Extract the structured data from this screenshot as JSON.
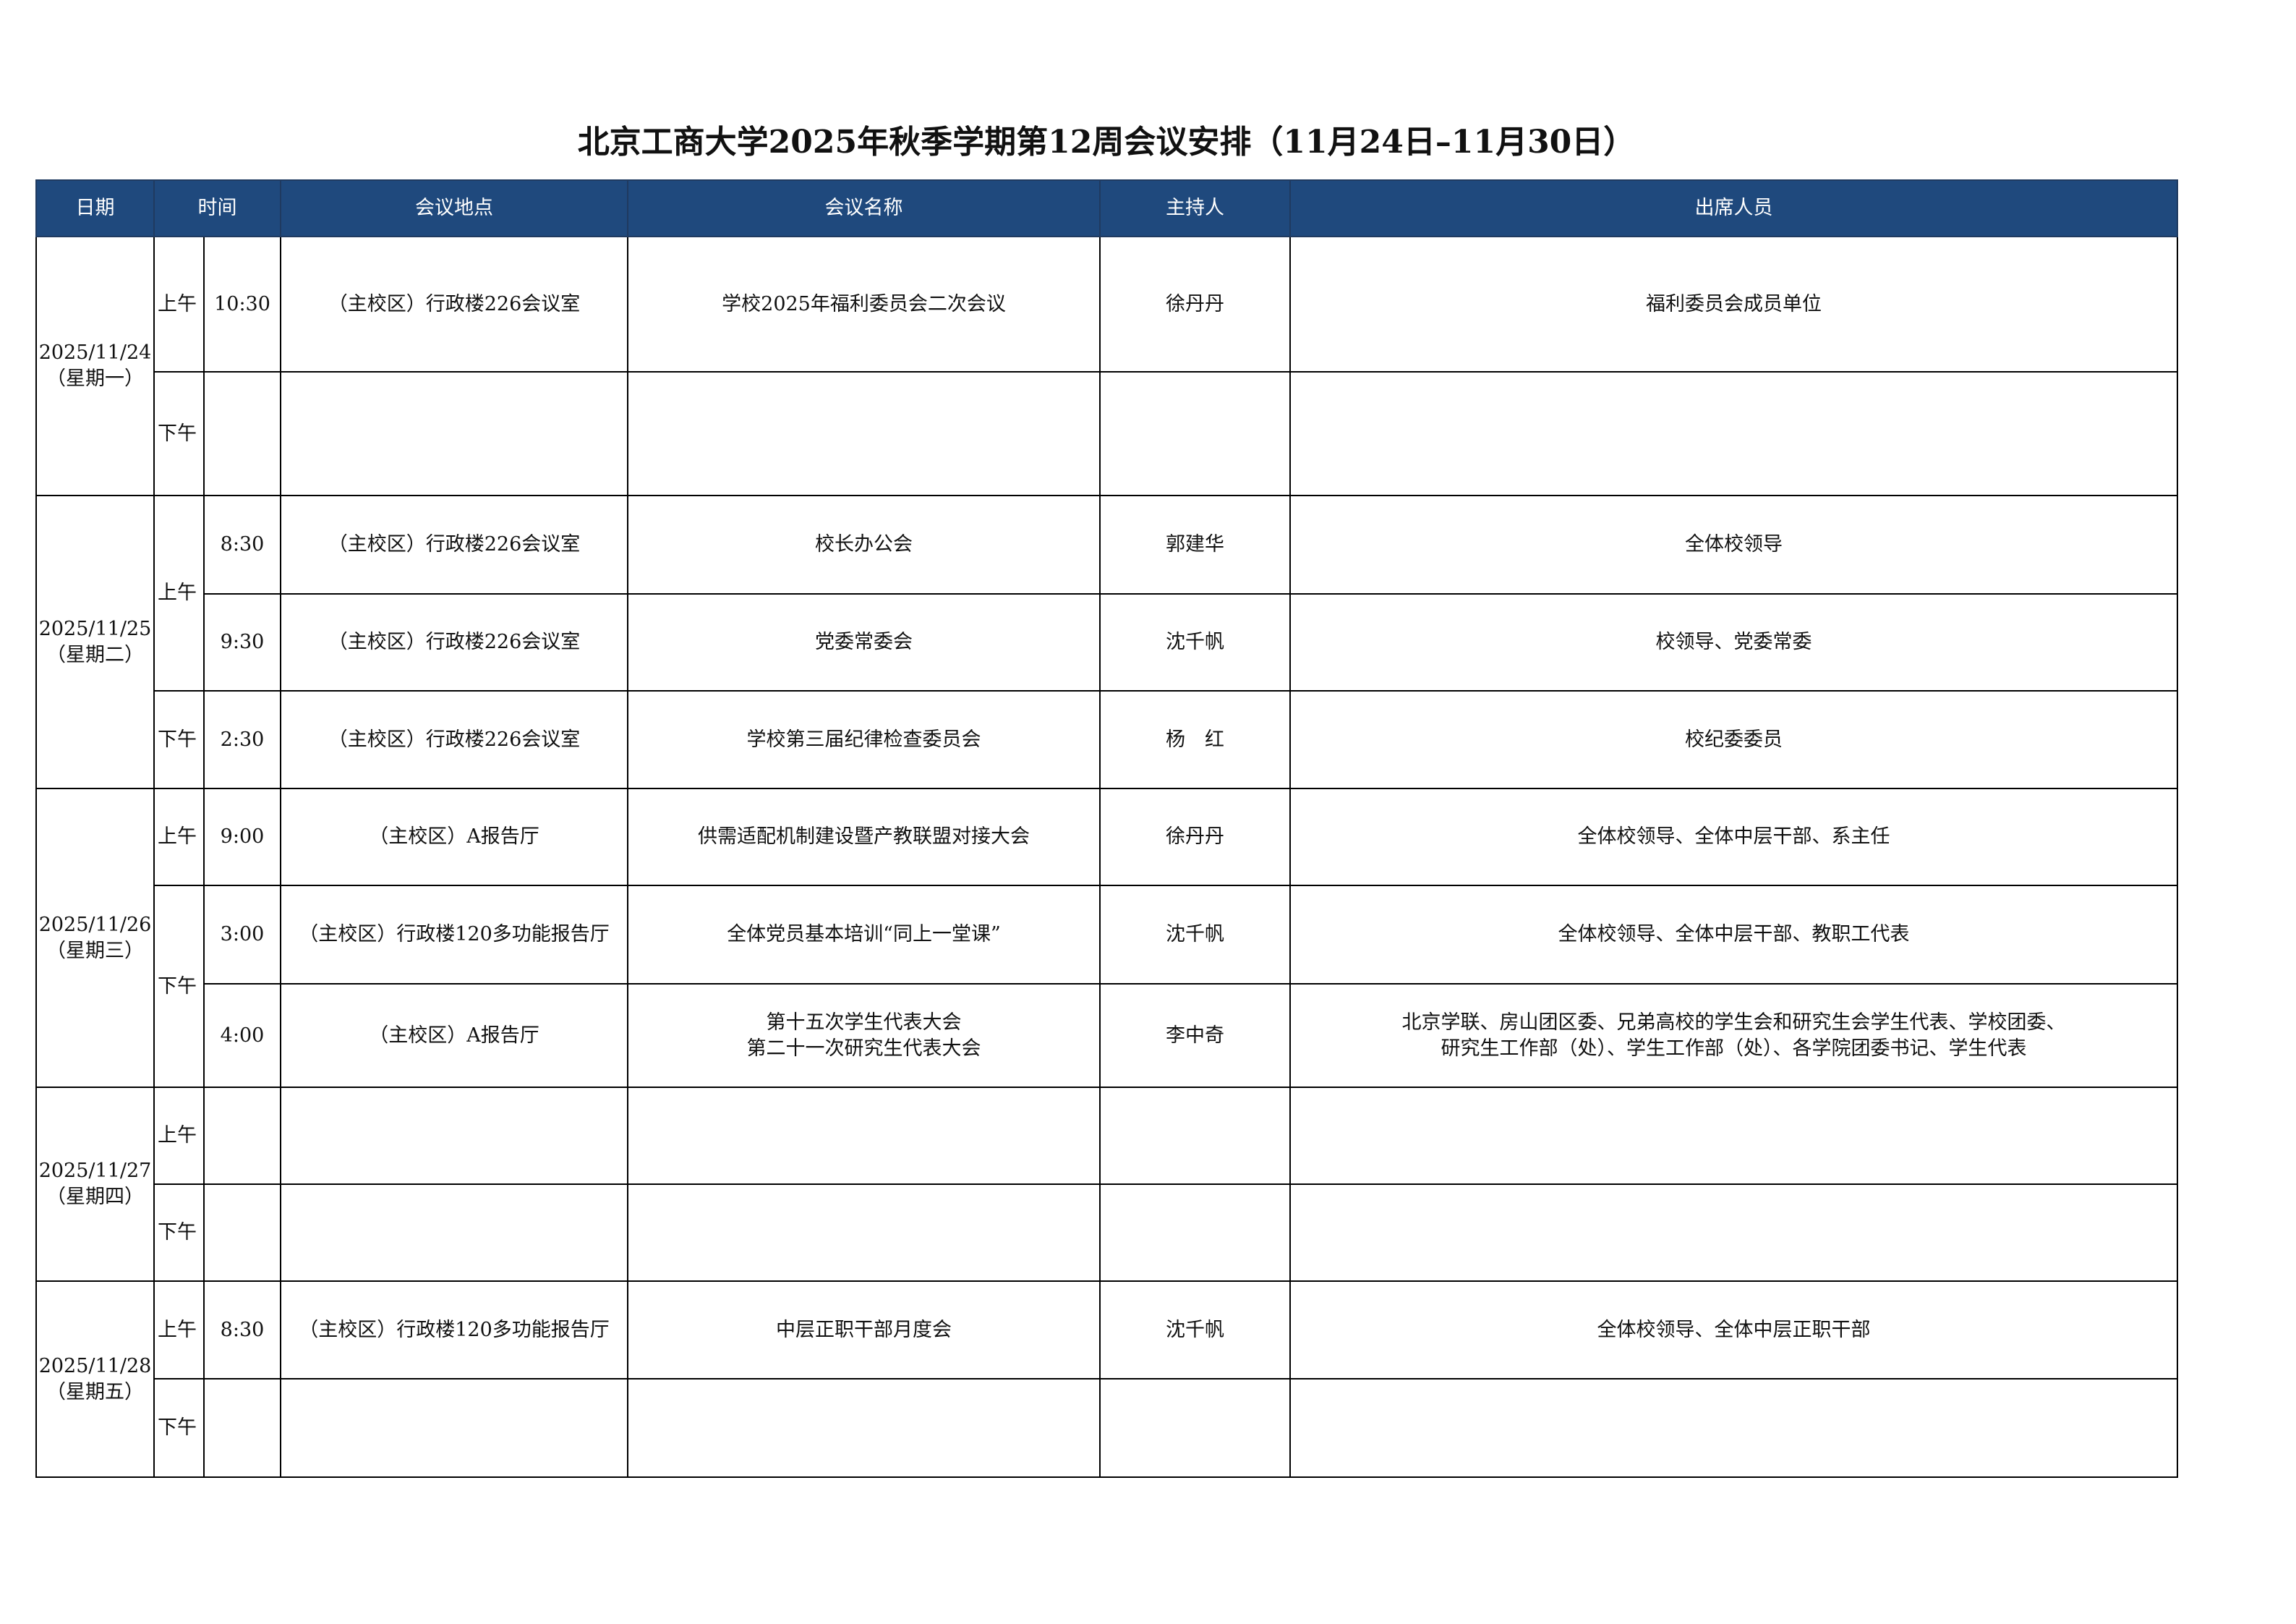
{
  "title": "北京工商大学2025年秋季学期第12周会议安排（11月24日–11月30日）",
  "colors": {
    "header_bg": "#1f497d",
    "header_text": "#ffffff"
  },
  "headers": {
    "date": "日期",
    "time": "时间",
    "location": "会议地点",
    "name": "会议名称",
    "host": "主持人",
    "attendees": "出席人员"
  },
  "days": [
    {
      "date": "2025/11/24\n（星期一）",
      "periods": [
        {
          "period": "上午",
          "meetings": [
            {
              "time": "10:30",
              "location": "（主校区）行政楼226会议室",
              "name": "学校2025年福利委员会二次会议",
              "host": "徐丹丹",
              "attendees": "福利委员会成员单位"
            }
          ]
        },
        {
          "period": "下午",
          "meetings": [
            {
              "time": "",
              "location": "",
              "name": "",
              "host": "",
              "attendees": ""
            }
          ]
        }
      ]
    },
    {
      "date": "2025/11/25\n（星期二）",
      "periods": [
        {
          "period": "上午",
          "meetings": [
            {
              "time": "8:30",
              "location": "（主校区）行政楼226会议室",
              "name": "校长办公会",
              "host": "郭建华",
              "attendees": "全体校领导"
            },
            {
              "time": "9:30",
              "location": "（主校区）行政楼226会议室",
              "name": "党委常委会",
              "host": "沈千帆",
              "attendees": "校领导、党委常委"
            }
          ]
        },
        {
          "period": "下午",
          "meetings": [
            {
              "time": "2:30",
              "location": "（主校区）行政楼226会议室",
              "name": "学校第三届纪律检查委员会",
              "host": "杨　红",
              "attendees": "校纪委委员"
            }
          ]
        }
      ]
    },
    {
      "date": "2025/11/26\n（星期三）",
      "periods": [
        {
          "period": "上午",
          "meetings": [
            {
              "time": "9:00",
              "location": "（主校区）A报告厅",
              "name": "供需适配机制建设暨产教联盟对接大会",
              "host": "徐丹丹",
              "attendees": "全体校领导、全体中层干部、系主任"
            }
          ]
        },
        {
          "period": "下午",
          "meetings": [
            {
              "time": "3:00",
              "location": "（主校区）行政楼120多功能报告厅",
              "name": "全体党员基本培训“同上一堂课”",
              "host": "沈千帆",
              "attendees": "全体校领导、全体中层干部、教职工代表"
            },
            {
              "time": "4:00",
              "location": "（主校区）A报告厅",
              "name": "第十五次学生代表大会\n第二十一次研究生代表大会",
              "host": "李中奇",
              "attendees": "北京学联、房山团区委、兄弟高校的学生会和研究生会学生代表、学校团委、\n研究生工作部（处）、学生工作部（处）、各学院团委书记、学生代表"
            }
          ]
        }
      ]
    },
    {
      "date": "2025/11/27\n（星期四）",
      "periods": [
        {
          "period": "上午",
          "meetings": [
            {
              "time": "",
              "location": "",
              "name": "",
              "host": "",
              "attendees": ""
            }
          ]
        },
        {
          "period": "下午",
          "meetings": [
            {
              "time": "",
              "location": "",
              "name": "",
              "host": "",
              "attendees": ""
            }
          ]
        }
      ]
    },
    {
      "date": "2025/11/28\n（星期五）",
      "periods": [
        {
          "period": "上午",
          "meetings": [
            {
              "time": "8:30",
              "location": "（主校区）行政楼120多功能报告厅",
              "name": "中层正职干部月度会",
              "host": "沈千帆",
              "attendees": "全体校领导、全体中层正职干部"
            }
          ]
        },
        {
          "period": "下午",
          "meetings": [
            {
              "time": "",
              "location": "",
              "name": "",
              "host": "",
              "attendees": ""
            }
          ]
        }
      ]
    }
  ]
}
